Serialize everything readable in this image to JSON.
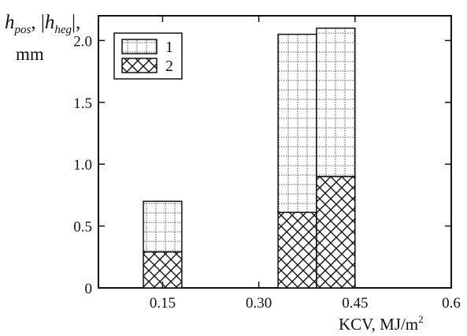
{
  "chart_data": {
    "type": "bar",
    "title": "",
    "y_axis": {
      "label_main_1": "h",
      "label_sub_1": "pos",
      "label_sep": ", |",
      "label_main_2": "h",
      "label_sub_2": "heg",
      "label_end": "|,",
      "unit": "mm",
      "range": [
        0,
        2.2
      ],
      "ticks": [
        {
          "value": 0,
          "label": "0"
        },
        {
          "value": 0.5,
          "label": "0.5"
        },
        {
          "value": 1.0,
          "label": "1.0"
        },
        {
          "value": 1.5,
          "label": "1.5"
        },
        {
          "value": 2.0,
          "label": "2.0"
        }
      ]
    },
    "x_axis": {
      "label_main": "KCV, MJ/m",
      "label_sup": "2",
      "range": [
        0.05,
        0.6
      ],
      "ticks": [
        {
          "value": 0.15,
          "label": "0.15"
        },
        {
          "value": 0.3,
          "label": "0.30"
        },
        {
          "value": 0.45,
          "label": "0.45"
        },
        {
          "value": 0.6,
          "label": "0.6"
        }
      ]
    },
    "legend": {
      "placement": "top-left",
      "entries": [
        {
          "label": "1",
          "pattern": "dotted-grid"
        },
        {
          "label": "2",
          "pattern": "crosshatch"
        }
      ]
    },
    "bars": [
      {
        "x_start": 0.12,
        "x_end": 0.18,
        "series1": 0.7,
        "series2": 0.29
      },
      {
        "x_start": 0.33,
        "x_end": 0.39,
        "series1": 2.05,
        "series2": 0.61
      },
      {
        "x_start": 0.39,
        "x_end": 0.45,
        "series1": 2.1,
        "series2": 0.9
      }
    ],
    "colors": {
      "ink": "#111111",
      "dot": "#555555",
      "background": "#ffffff"
    }
  }
}
